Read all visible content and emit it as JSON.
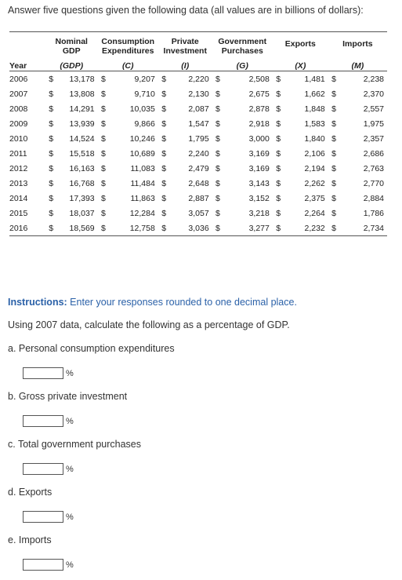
{
  "intro": "Answer five questions given the following data (all values are in billions of dollars):",
  "table": {
    "headers": [
      "Nominal\nGDP",
      "Consumption\nExpenditures",
      "Private\nInvestment",
      "Government\nPurchases",
      "Exports",
      "Imports"
    ],
    "symbols": [
      "Year",
      "(GDP)",
      "(C)",
      "(I)",
      "(G)",
      "(X)",
      "(M)"
    ],
    "currency": "$",
    "rows": [
      [
        "2006",
        "13,178",
        "9,207",
        "2,220",
        "2,508",
        "1,481",
        "2,238"
      ],
      [
        "2007",
        "13,808",
        "9,710",
        "2,130",
        "2,675",
        "1,662",
        "2,370"
      ],
      [
        "2008",
        "14,291",
        "10,035",
        "2,087",
        "2,878",
        "1,848",
        "2,557"
      ],
      [
        "2009",
        "13,939",
        "9,866",
        "1,547",
        "2,918",
        "1,583",
        "1,975"
      ],
      [
        "2010",
        "14,524",
        "10,246",
        "1,795",
        "3,000",
        "1,840",
        "2,357"
      ],
      [
        "2011",
        "15,518",
        "10,689",
        "2,240",
        "3,169",
        "2,106",
        "2,686"
      ],
      [
        "2012",
        "16,163",
        "11,083",
        "2,479",
        "3,169",
        "2,194",
        "2,763"
      ],
      [
        "2013",
        "16,768",
        "11,484",
        "2,648",
        "3,143",
        "2,262",
        "2,770"
      ],
      [
        "2014",
        "17,393",
        "11,863",
        "2,887",
        "3,152",
        "2,375",
        "2,884"
      ],
      [
        "2015",
        "18,037",
        "12,284",
        "3,057",
        "3,218",
        "2,264",
        "1,786"
      ],
      [
        "2016",
        "18,569",
        "12,758",
        "3,036",
        "3,277",
        "2,232",
        "2,734"
      ]
    ]
  },
  "instructions": {
    "label": "Instructions:",
    "text": " Enter your responses rounded to one decimal place."
  },
  "prompt": "Using 2007 data, calculate the following as a percentage of GDP.",
  "questions": [
    {
      "label": "a. Personal consumption expenditures",
      "value": "",
      "unit": "%"
    },
    {
      "label": "b. Gross private investment",
      "value": "",
      "unit": "%"
    },
    {
      "label": "c. Total government purchases",
      "value": "",
      "unit": "%"
    },
    {
      "label": "d. Exports",
      "value": "",
      "unit": "%"
    },
    {
      "label": "e. Imports",
      "value": "",
      "unit": "%"
    }
  ]
}
